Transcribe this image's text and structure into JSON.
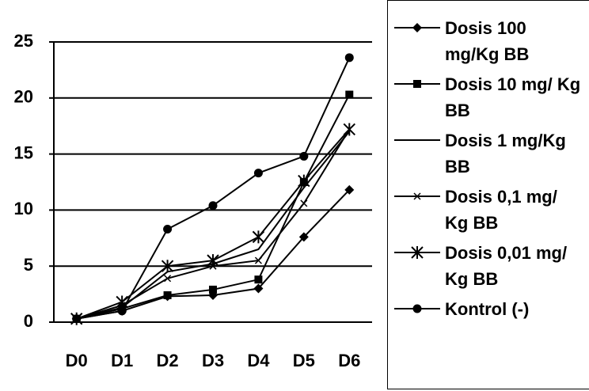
{
  "chart_data": {
    "type": "line",
    "categories": [
      "D0",
      "D1",
      "D2",
      "D3",
      "D4",
      "D5",
      "D6"
    ],
    "series": [
      {
        "name": "Dosis 100 mg/Kg BB",
        "color": "#000000",
        "marker": "diamond",
        "values": [
          0.3,
          1.0,
          2.3,
          2.4,
          3.0,
          7.6,
          11.8
        ]
      },
      {
        "name": "Dosis 10 mg/ Kg BB",
        "color": "#000000",
        "marker": "square",
        "values": [
          0.3,
          1.2,
          2.4,
          2.9,
          3.8,
          12.5,
          20.3
        ]
      },
      {
        "name": "Dosis 1 mg/Kg BB",
        "color": "#000000",
        "marker": "none",
        "values": [
          0.3,
          1.3,
          4.5,
          5.2,
          6.5,
          12.0,
          17.0
        ]
      },
      {
        "name": "Dosis 0,1 mg/ Kg BB",
        "color": "#000000",
        "marker": "cross",
        "values": [
          0.3,
          1.5,
          3.9,
          5.0,
          5.5,
          10.6,
          17.2
        ]
      },
      {
        "name": "Dosis 0,01 mg/ Kg BB",
        "color": "#000000",
        "marker": "asterisk",
        "values": [
          0.3,
          1.8,
          5.0,
          5.5,
          7.6,
          12.6,
          17.2
        ]
      },
      {
        "name": "Kontrol (-)",
        "color": "#000000",
        "marker": "circle",
        "values": [
          0.3,
          1.0,
          8.3,
          10.4,
          13.3,
          14.8,
          23.6
        ]
      }
    ],
    "ylim": [
      0,
      25
    ],
    "yticks": [
      0,
      5,
      10,
      15,
      20,
      25
    ],
    "grid": true,
    "legend": "right"
  }
}
